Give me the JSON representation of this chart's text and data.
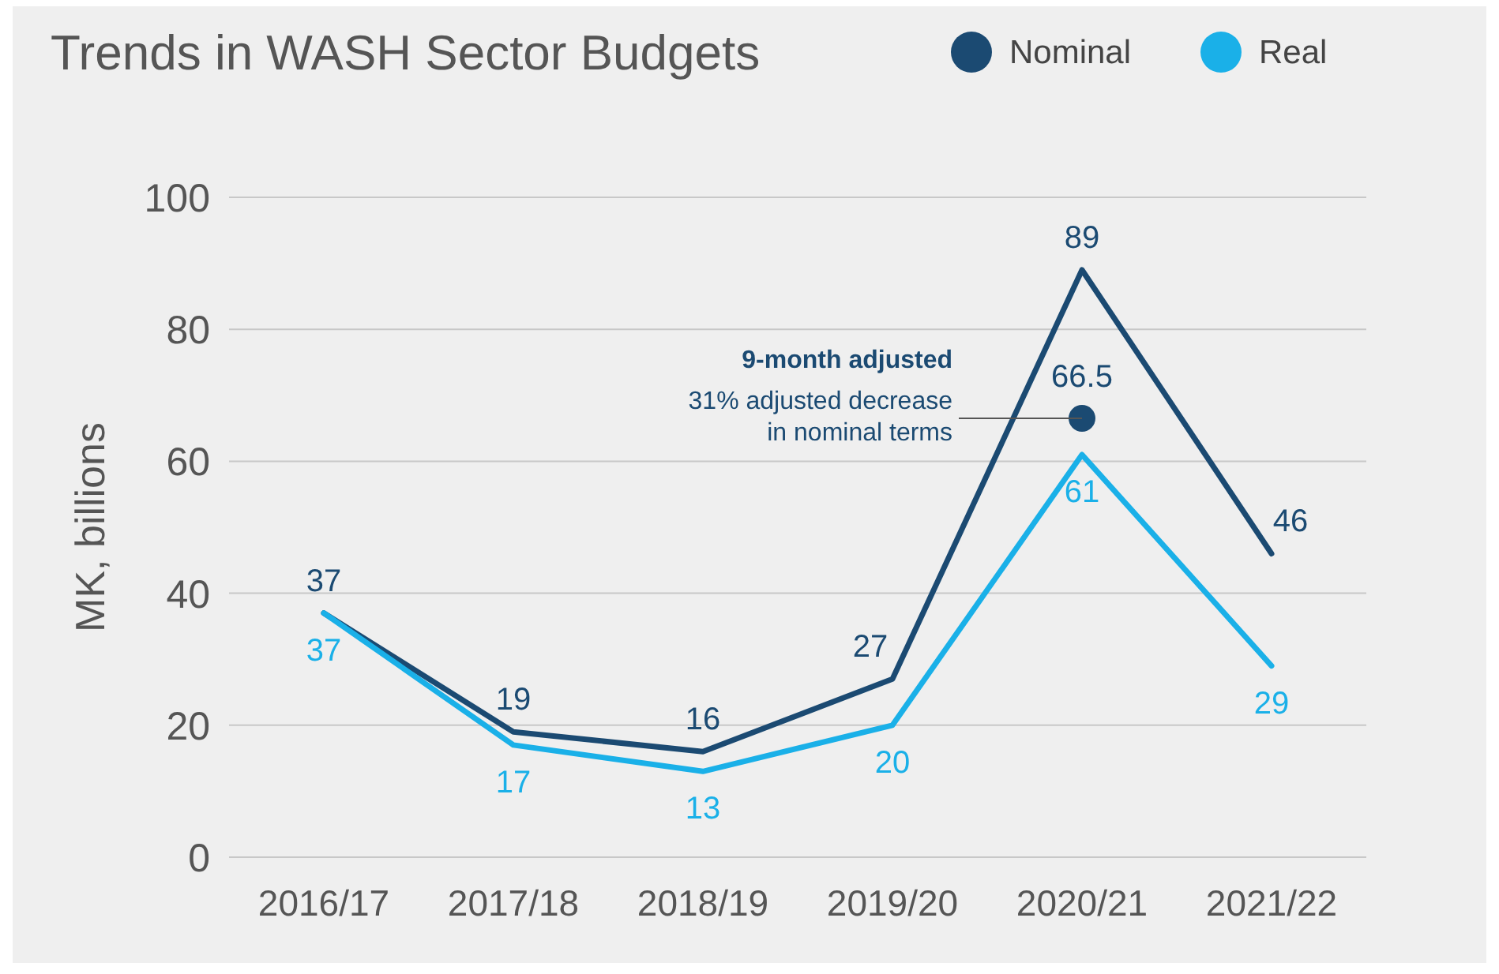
{
  "chart_data": {
    "type": "line",
    "title": "Trends in WASH Sector Budgets",
    "ylabel": "MK, billions",
    "categories": [
      "2016/17",
      "2017/18",
      "2018/19",
      "2019/20",
      "2020/21",
      "2021/22"
    ],
    "series": [
      {
        "name": "Nominal",
        "color": "#1b4a72",
        "values": [
          37,
          19,
          16,
          27,
          89,
          46
        ]
      },
      {
        "name": "Real",
        "color": "#1ab0e8",
        "values": [
          37,
          17,
          13,
          20,
          61,
          29
        ]
      },
      {
        "type": "scatter",
        "color": "#1b4a72",
        "x": [
          "2020/21"
        ],
        "values": [
          66.5
        ],
        "marker": "circle"
      }
    ],
    "annotations": [
      "9-month adjusted",
      {
        "text": "31% adjusted decrease in nominal terms",
        "x": "2020/21",
        "y": 66.5
      }
    ],
    "ylim": [
      0,
      100
    ],
    "yticks": [
      0,
      20,
      40,
      60,
      80,
      100
    ],
    "grid": "y",
    "legend": "top right",
    "data_labels": true,
    "marker": "none",
    "line_style": "solid"
  }
}
